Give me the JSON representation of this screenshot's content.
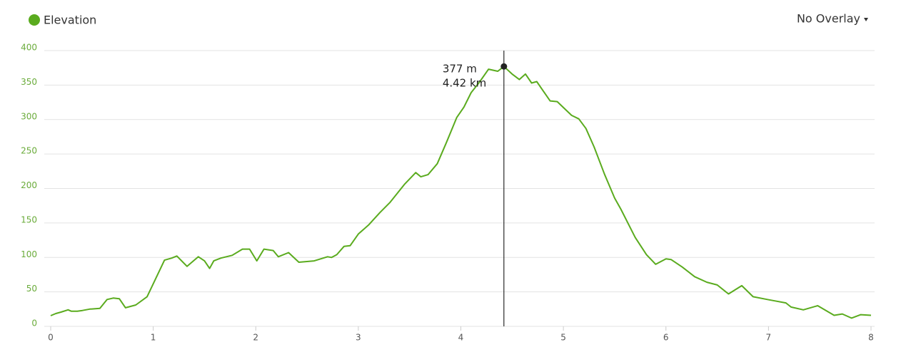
{
  "chart_data": {
    "type": "line",
    "legend_label": "Elevation",
    "overlay_menu": "No Overlay",
    "xlim": [
      0,
      8
    ],
    "xticks": [
      0,
      1,
      2,
      3,
      4,
      5,
      6,
      7,
      8
    ],
    "ylim": [
      0,
      400
    ],
    "yticks": [
      0,
      50,
      100,
      150,
      200,
      250,
      300,
      350,
      400
    ],
    "grid": true,
    "series": [
      {
        "name": "Elevation",
        "color": "#5aab1e",
        "x": [
          0,
          0.05,
          0.1,
          0.17,
          0.2,
          0.26,
          0.31,
          0.38,
          0.48,
          0.55,
          0.61,
          0.67,
          0.73,
          0.83,
          0.94,
          1.11,
          1.18,
          1.23,
          1.33,
          1.44,
          1.5,
          1.55,
          1.59,
          1.66,
          1.77,
          1.87,
          1.94,
          2.01,
          2.08,
          2.17,
          2.22,
          2.32,
          2.42,
          2.57,
          2.7,
          2.74,
          2.79,
          2.86,
          2.92,
          3.0,
          3.1,
          3.21,
          3.31,
          3.45,
          3.56,
          3.61,
          3.68,
          3.77,
          3.86,
          3.96,
          4.03,
          4.1,
          4.18,
          4.27,
          4.36,
          4.42,
          4.5,
          4.57,
          4.63,
          4.69,
          4.74,
          4.87,
          4.94,
          5.08,
          5.15,
          5.22,
          5.3,
          5.4,
          5.5,
          5.56,
          5.7,
          5.81,
          5.9,
          6.0,
          6.05,
          6.16,
          6.28,
          6.4,
          6.5,
          6.61,
          6.74,
          6.85,
          6.99,
          7.06,
          7.17,
          7.22,
          7.34,
          7.48,
          7.64,
          7.72,
          7.81,
          7.9,
          8
        ],
        "values": [
          15.5,
          18.6,
          20.7,
          24,
          22,
          22,
          23,
          25,
          26,
          39,
          41,
          40,
          27,
          31,
          43,
          96,
          99,
          102,
          87,
          101,
          95,
          84,
          95,
          99,
          103,
          112,
          112,
          95,
          112,
          110,
          101,
          107,
          93,
          95,
          101,
          100,
          104,
          116,
          117,
          134,
          147,
          165,
          180,
          206,
          223,
          217,
          220,
          236,
          267,
          303,
          318,
          339,
          354,
          373,
          370,
          377,
          366,
          358,
          366,
          353,
          355,
          327,
          326,
          306,
          301,
          287,
          260,
          221,
          186,
          170,
          129,
          104,
          90,
          98,
          97,
          86,
          72,
          64,
          60,
          47,
          59,
          43,
          39,
          37,
          34,
          28,
          24,
          30,
          16,
          18,
          12,
          17,
          16
        ]
      }
    ],
    "annotation": {
      "x": 4.42,
      "y": 377,
      "labels": [
        "377 m",
        "4.42 km"
      ]
    }
  }
}
